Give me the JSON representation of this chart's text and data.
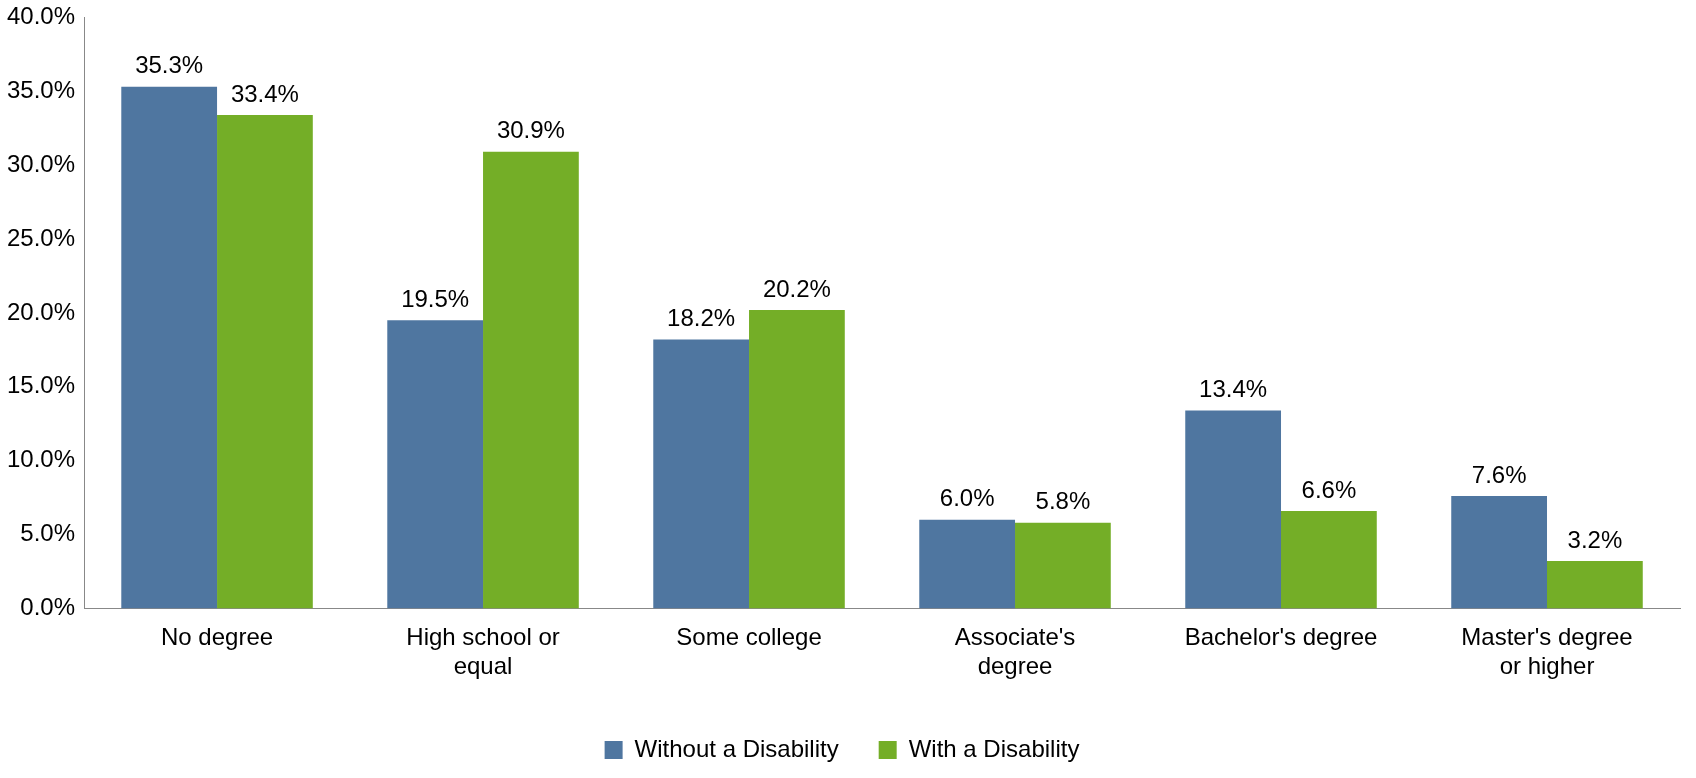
{
  "chart_data": {
    "type": "bar",
    "categories": [
      "No degree",
      "High school or equal",
      "Some college",
      "Associate's degree",
      "Bachelor's degree",
      "Master's degree or higher"
    ],
    "series": [
      {
        "name": "Without a Disability",
        "color": "#4f76a0",
        "values": [
          35.3,
          19.5,
          18.2,
          6.0,
          13.4,
          7.6
        ],
        "value_labels": [
          "35.3%",
          "19.5%",
          "18.2%",
          "6.0%",
          "13.4%",
          "7.6%"
        ]
      },
      {
        "name": "With a Disability",
        "color": "#74ae27",
        "values": [
          33.4,
          30.9,
          20.2,
          5.8,
          6.6,
          3.2
        ],
        "value_labels": [
          "33.4%",
          "30.9%",
          "20.2%",
          "5.8%",
          "6.6%",
          "3.2%"
        ]
      }
    ],
    "ylim": [
      0,
      40
    ],
    "yticks": [
      {
        "value": 0,
        "label": "0.0%"
      },
      {
        "value": 5,
        "label": "5.0%"
      },
      {
        "value": 10,
        "label": "10.0%"
      },
      {
        "value": 15,
        "label": "15.0%"
      },
      {
        "value": 20,
        "label": "20.0%"
      },
      {
        "value": 25,
        "label": "25.0%"
      },
      {
        "value": 30,
        "label": "30.0%"
      },
      {
        "value": 35,
        "label": "35.0%"
      },
      {
        "value": 40,
        "label": "40.0%"
      }
    ],
    "grid": false,
    "legend": "bottom"
  }
}
